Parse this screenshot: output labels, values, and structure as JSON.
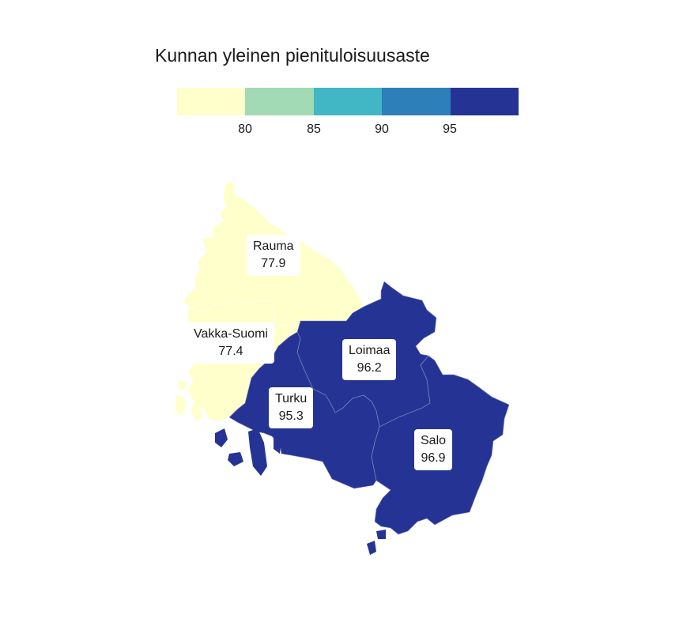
{
  "legend": {
    "title": "Kunnan yleinen pienituloisuusaste",
    "colors": [
      "#ffffcc",
      "#a1dab4",
      "#41b6c4",
      "#2c7fb8",
      "#253494"
    ],
    "ticks": [
      "80",
      "85",
      "90",
      "95"
    ]
  },
  "map": {
    "regions": [
      {
        "id": "rauma",
        "name": "Rauma",
        "value": "77.9",
        "color": "#ffffcc"
      },
      {
        "id": "vakka-suomi",
        "name": "Vakka-Suomi",
        "value": "77.4",
        "color": "#ffffcc"
      },
      {
        "id": "loimaa",
        "name": "Loimaa",
        "value": "96.2",
        "color": "#253494"
      },
      {
        "id": "turku",
        "name": "Turku",
        "value": "95.3",
        "color": "#253494"
      },
      {
        "id": "salo",
        "name": "Salo",
        "value": "96.9",
        "color": "#253494"
      }
    ]
  }
}
